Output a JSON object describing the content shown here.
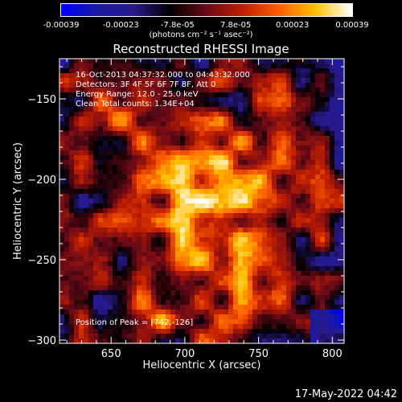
{
  "colorbar": {
    "tick_labels": [
      "-0.00039",
      "-0.00023",
      "-7.8e-05",
      "7.8e-05",
      "0.00023",
      "0.00039"
    ],
    "tick_values": [
      -0.00039,
      -0.00023,
      -7.8e-05,
      7.8e-05,
      0.00023,
      0.00039
    ],
    "range": [
      -0.00039,
      0.00039
    ],
    "unit_label": "(photons cm⁻² s⁻¹ asec⁻²)"
  },
  "chart_data": {
    "type": "heatmap",
    "title": "Reconstructed RHESSI Image",
    "xlabel": "Heliocentric X (arcsec)",
    "ylabel": "Heliocentric Y (arcsec)",
    "xlim": [
      615,
      808
    ],
    "ylim": [
      -302,
      -125
    ],
    "xticks": [
      650,
      700,
      750,
      800
    ],
    "yticks": [
      -150,
      -200,
      -250,
      -300
    ],
    "peak": {
      "x": 742,
      "y": -126
    },
    "info_lines": [
      "16-Oct-2013 04:37:32.000 to 04:43:32.000",
      "Detectors: 3F 4F 5F 6F 7F 8F, Att 0",
      "Energy Range: 12.0 - 25.0 keV",
      "Clean     Total counts: 1.34E+04"
    ],
    "peak_label": "Position of Peak = [742,-126]",
    "colormap": [
      "#0000ff",
      "#1a1aa0",
      "#2a1a8a",
      "#000000",
      "#6a0a18",
      "#c01e00",
      "#ff6000",
      "#ffc000",
      "#ffffff"
    ]
  },
  "footer": {
    "timestamp": "17-May-2022 04:42"
  }
}
